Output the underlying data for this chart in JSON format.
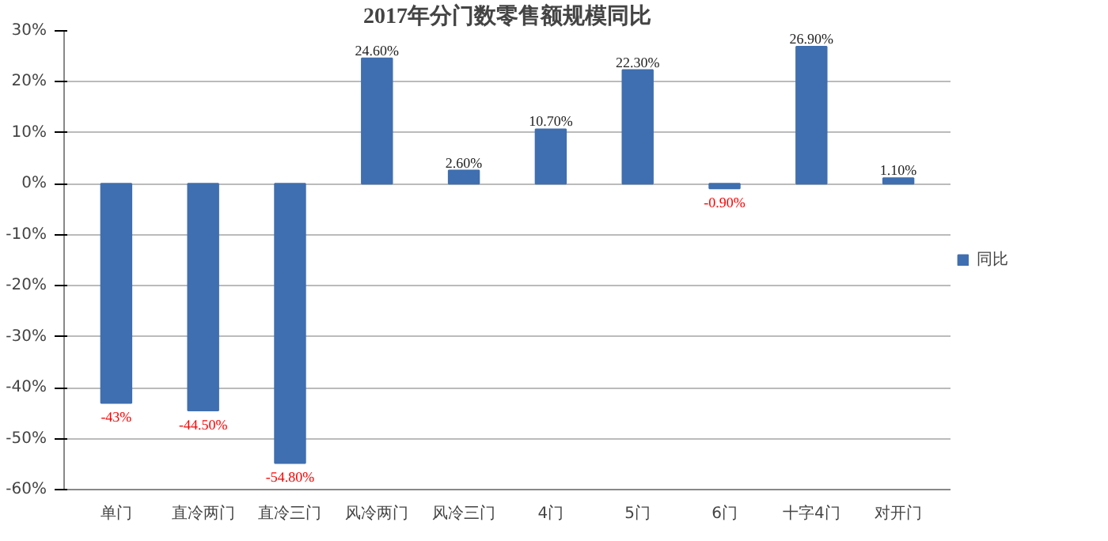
{
  "chart_data": {
    "type": "bar",
    "title": "2017年分门数零售额规模同比",
    "categories": [
      "单门",
      "直冷两门",
      "直冷三门",
      "风冷两门",
      "风冷三门",
      "4门",
      "5门",
      "6门",
      "十字4门",
      "对开门"
    ],
    "series": [
      {
        "name": "同比",
        "color": "#3f6fb0",
        "values": [
          -43,
          -44.5,
          -54.8,
          24.6,
          2.6,
          10.7,
          22.3,
          -0.9,
          26.9,
          1.1
        ],
        "value_labels": [
          "-43%",
          "-44.50%",
          "-54.80%",
          "24.60%",
          "2.60%",
          "10.70%",
          "22.30%",
          "-0.90%",
          "26.90%",
          "1.10%"
        ]
      }
    ],
    "ylim": [
      -60,
      30
    ],
    "yticks": [
      {
        "value": -60,
        "label": "-60%"
      },
      {
        "value": -50,
        "label": "-50%"
      },
      {
        "value": -40,
        "label": "-40%"
      },
      {
        "value": -30,
        "label": "-30%"
      },
      {
        "value": -20,
        "label": "-20%"
      },
      {
        "value": -10,
        "label": "-10%"
      },
      {
        "value": 0,
        "label": "0%"
      },
      {
        "value": 10,
        "label": "10%"
      },
      {
        "value": 20,
        "label": "20%"
      },
      {
        "value": 30,
        "label": "30%"
      }
    ],
    "grid": "y",
    "legend": "right"
  }
}
